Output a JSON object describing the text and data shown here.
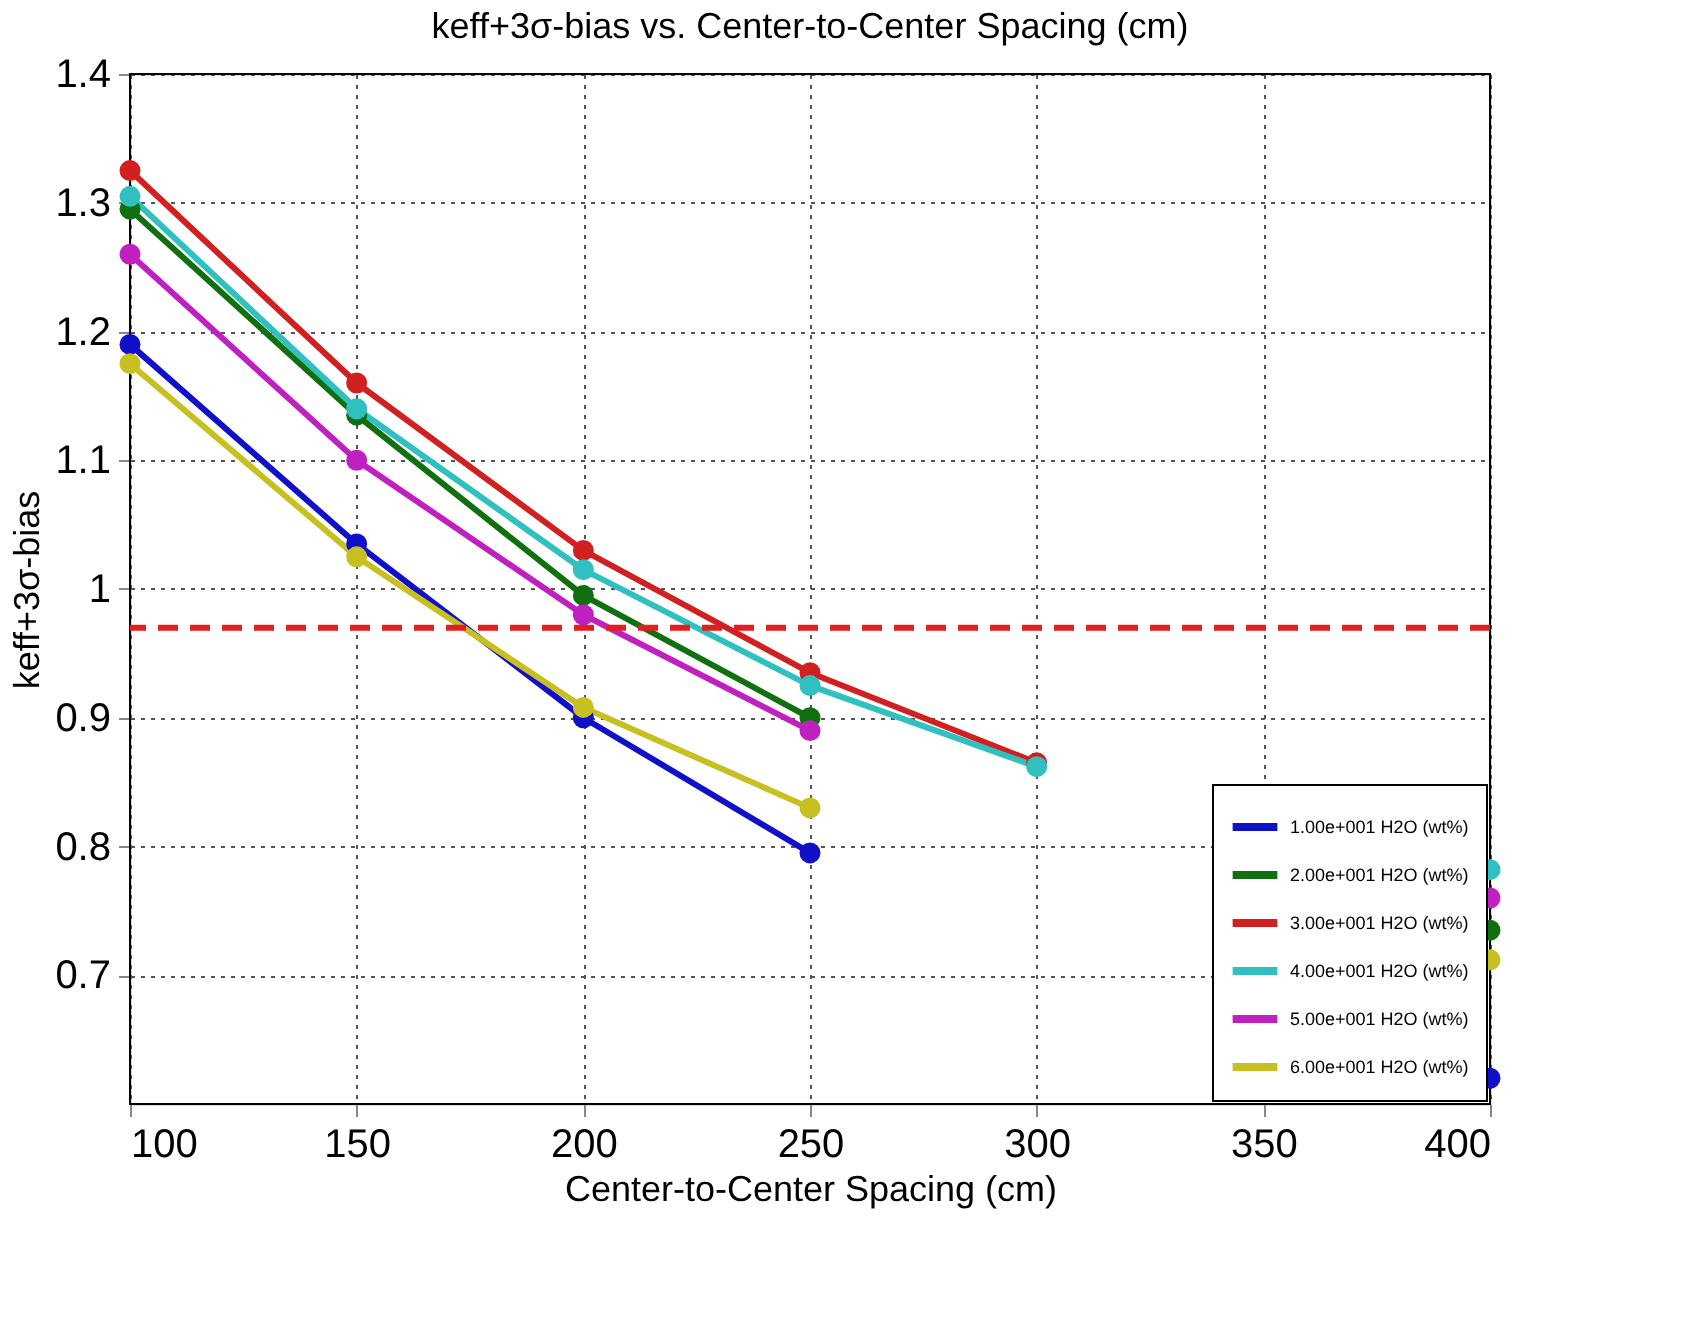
{
  "chart_data": {
    "type": "line",
    "title": "keff+3σ-bias vs. Center-to-Center Spacing (cm)",
    "xlabel": "Center-to-Center Spacing (cm)",
    "ylabel": "keff+3σ-bias",
    "x": [
      100,
      150,
      200,
      250,
      300,
      350,
      400
    ],
    "series": [
      {
        "name": "1.00e+001 H2O (wt%)",
        "color": "#1010c8",
        "values": [
          1.19,
          1.035,
          0.9,
          0.795,
          null,
          null,
          0.62
        ]
      },
      {
        "name": "2.00e+001 H2O (wt%)",
        "color": "#107010",
        "values": [
          1.295,
          1.135,
          0.995,
          0.9,
          null,
          null,
          0.735
        ]
      },
      {
        "name": "3.00e+001 H2O (wt%)",
        "color": "#d02020",
        "values": [
          1.325,
          1.16,
          1.03,
          0.935,
          0.865,
          null,
          null
        ]
      },
      {
        "name": "4.00e+001 H2O (wt%)",
        "color": "#30c0c0",
        "values": [
          1.305,
          1.14,
          1.015,
          0.925,
          0.862,
          null,
          0.782
        ]
      },
      {
        "name": "5.00e+001 H2O (wt%)",
        "color": "#c020c0",
        "values": [
          1.26,
          1.1,
          0.98,
          0.89,
          null,
          null,
          0.76
        ]
      },
      {
        "name": "6.00e+001 H2O (wt%)",
        "color": "#c8c020",
        "values": [
          1.175,
          1.025,
          0.908,
          0.83,
          null,
          null,
          0.712
        ]
      }
    ],
    "xlim": [
      100,
      400
    ],
    "xticks": [
      100,
      150,
      200,
      250,
      300,
      350,
      400
    ],
    "ylim": [
      0.6,
      1.4
    ],
    "yticks": [
      0.7,
      0.8,
      0.9,
      1,
      1.1,
      1.2,
      1.3,
      1.4
    ],
    "ref_lines": [
      {
        "axis": "y",
        "value": 0.97,
        "color": "#e02020",
        "line_style": "dashed"
      }
    ],
    "grid": true,
    "legend": "bottom right",
    "marker": "circle",
    "line_style": "solid"
  }
}
